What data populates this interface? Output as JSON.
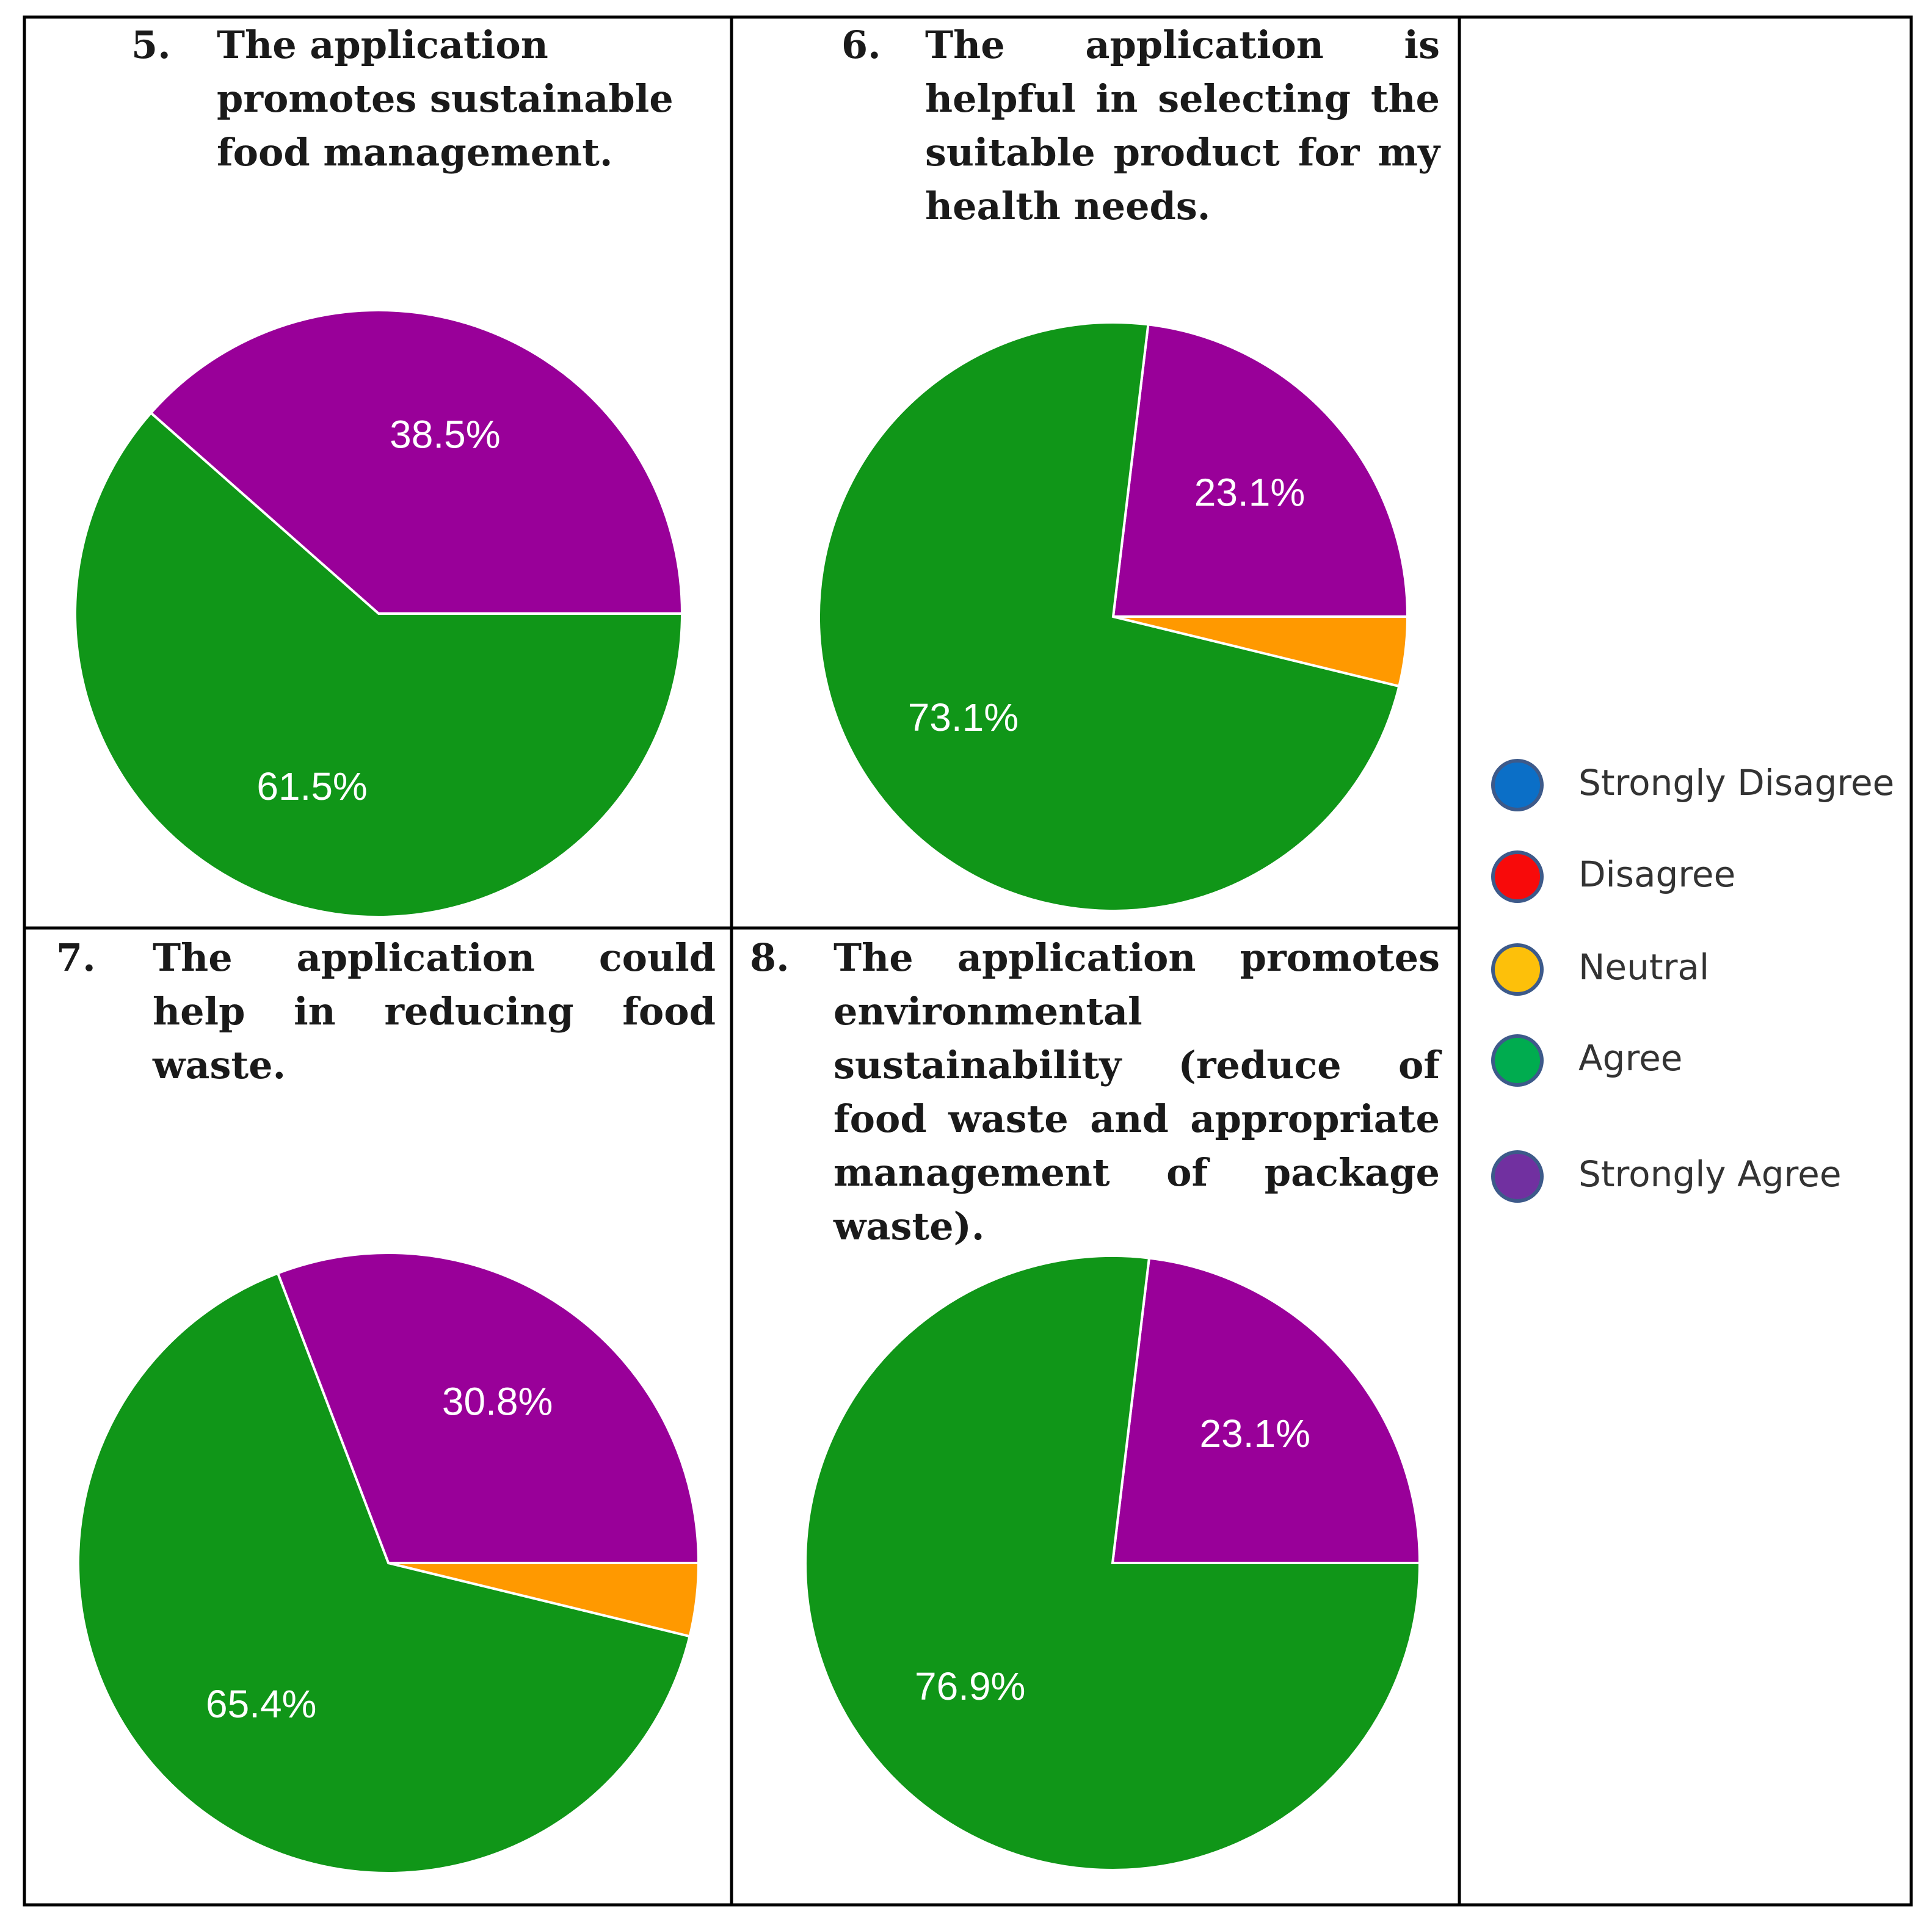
{
  "chart_data": [
    {
      "type": "pie",
      "number": "5.",
      "title": "The application promotes sustainable food management.",
      "categories": [
        "Strongly Disagree",
        "Disagree",
        "Neutral",
        "Agree",
        "Strongly Agree"
      ],
      "values": [
        0,
        0,
        0,
        61.5,
        38.5
      ],
      "labels": [
        "",
        "",
        "",
        "61.5%",
        "38.5%"
      ]
    },
    {
      "type": "pie",
      "number": "6.",
      "title": "The application is helpful in selecting the suitable product for my health needs.",
      "categories": [
        "Strongly Disagree",
        "Disagree",
        "Neutral",
        "Agree",
        "Strongly Agree"
      ],
      "values": [
        0,
        0,
        3.8,
        73.1,
        23.1
      ],
      "labels": [
        "",
        "",
        "",
        "73.1%",
        "23.1%"
      ]
    },
    {
      "type": "pie",
      "number": "7.",
      "title": "The application could help in reducing food waste.",
      "categories": [
        "Strongly Disagree",
        "Disagree",
        "Neutral",
        "Agree",
        "Strongly Agree"
      ],
      "values": [
        0,
        0,
        3.8,
        65.4,
        30.8
      ],
      "labels": [
        "",
        "",
        "",
        "65.4%",
        "30.8%"
      ]
    },
    {
      "type": "pie",
      "number": "8.",
      "title": "The application promotes environmental sustainability (reduce of food waste and appropriate management of package waste).",
      "categories": [
        "Strongly Disagree",
        "Disagree",
        "Neutral",
        "Agree",
        "Strongly Agree"
      ],
      "values": [
        0,
        0,
        0,
        76.9,
        23.1
      ],
      "labels": [
        "",
        "",
        "",
        "76.9%",
        "23.1%"
      ]
    }
  ],
  "legend": {
    "placement": "right",
    "items": [
      {
        "label": "Strongly Disagree",
        "color": "#0b6fc7"
      },
      {
        "label": "Disagree",
        "color": "#f80a0a"
      },
      {
        "label": "Neutral",
        "color": "#fdc00a"
      },
      {
        "label": "Agree",
        "color": "#00ac4f"
      },
      {
        "label": "Strongly Agree",
        "color": "#7130a0"
      }
    ]
  },
  "slice_colors": {
    "Strongly Disagree": "#3366cc",
    "Disagree": "#dc3912",
    "Neutral": "#ff9900",
    "Agree": "#109618",
    "Strongly Agree": "#990099"
  }
}
